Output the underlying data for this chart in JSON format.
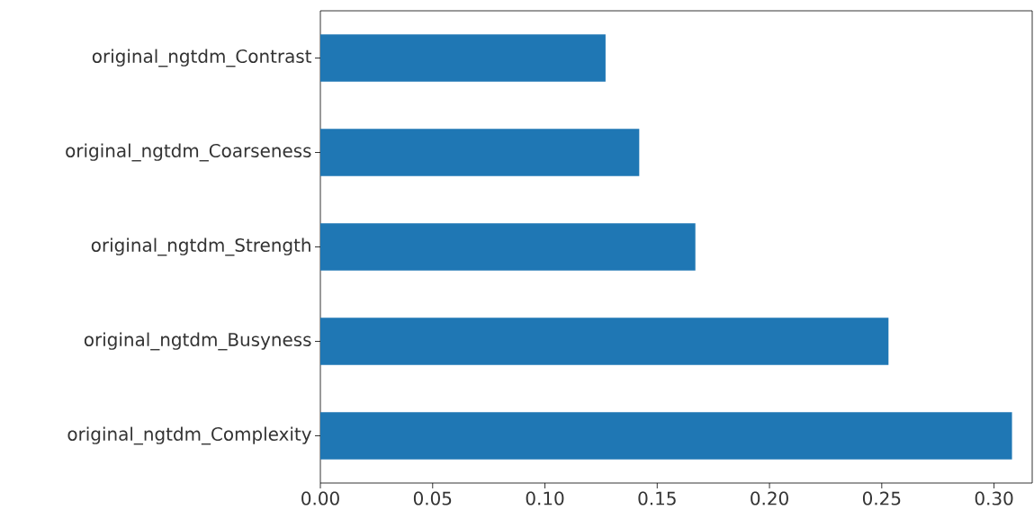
{
  "chart_data": {
    "type": "bar",
    "orientation": "horizontal",
    "categories": [
      "original_ngtdm_Contrast",
      "original_ngtdm_Coarseness",
      "original_ngtdm_Strength",
      "original_ngtdm_Busyness",
      "original_ngtdm_Complexity"
    ],
    "values": [
      0.127,
      0.142,
      0.167,
      0.253,
      0.308
    ],
    "color": "#1f77b4",
    "xlim": [
      0,
      0.317
    ],
    "xticks": [
      {
        "value": 0,
        "label": "0.00"
      },
      {
        "value": 0.05,
        "label": "0.05"
      },
      {
        "value": 0.1,
        "label": "0.10"
      },
      {
        "value": 0.15,
        "label": "0.15"
      },
      {
        "value": 0.2,
        "label": "0.20"
      },
      {
        "value": 0.25,
        "label": "0.25"
      },
      {
        "value": 0.3,
        "label": "0.30"
      }
    ]
  }
}
